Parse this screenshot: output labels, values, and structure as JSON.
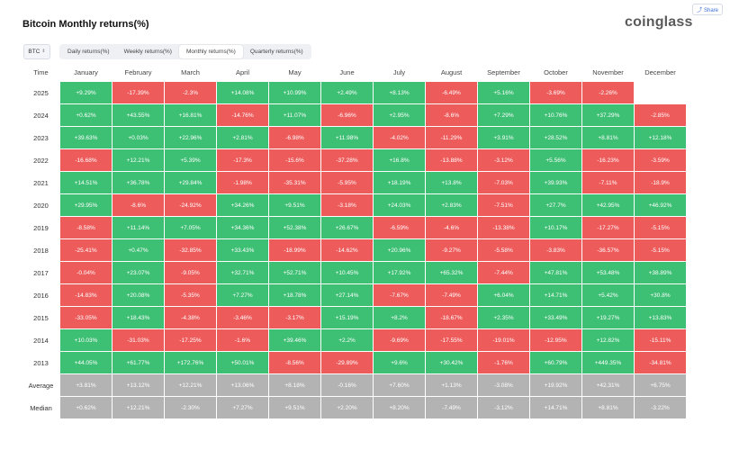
{
  "header": {
    "title": "Bitcoin Monthly returns(%)",
    "brand": "coinglass",
    "share_label": "Share"
  },
  "controls": {
    "coin": "BTC",
    "tabs": [
      {
        "label": "Daily returns(%)",
        "active": false
      },
      {
        "label": "Weekly returns(%)",
        "active": false
      },
      {
        "label": "Monthly returns(%)",
        "active": true
      },
      {
        "label": "Quarterly returns(%)",
        "active": false
      }
    ]
  },
  "table": {
    "columns": [
      "Time",
      "January",
      "February",
      "March",
      "April",
      "May",
      "June",
      "July",
      "August",
      "September",
      "October",
      "November",
      "December"
    ],
    "rows": [
      {
        "label": "2025",
        "values": [
          "+9.29%",
          "-17.39%",
          "-2.3%",
          "+14.08%",
          "+10.99%",
          "+2.49%",
          "+8.13%",
          "-6.49%",
          "+5.16%",
          "-3.69%",
          "-2.26%",
          ""
        ]
      },
      {
        "label": "2024",
        "values": [
          "+0.62%",
          "+43.55%",
          "+16.81%",
          "-14.76%",
          "+11.07%",
          "-6.96%",
          "+2.95%",
          "-8.6%",
          "+7.29%",
          "+10.76%",
          "+37.29%",
          "-2.85%"
        ]
      },
      {
        "label": "2023",
        "values": [
          "+39.63%",
          "+0.03%",
          "+22.96%",
          "+2.81%",
          "-6.98%",
          "+11.98%",
          "-4.02%",
          "-11.29%",
          "+3.91%",
          "+28.52%",
          "+8.81%",
          "+12.18%"
        ]
      },
      {
        "label": "2022",
        "values": [
          "-16.68%",
          "+12.21%",
          "+5.39%",
          "-17.3%",
          "-15.6%",
          "-37.28%",
          "+16.8%",
          "-13.88%",
          "-3.12%",
          "+5.56%",
          "-16.23%",
          "-3.59%"
        ]
      },
      {
        "label": "2021",
        "values": [
          "+14.51%",
          "+36.78%",
          "+29.84%",
          "-1.98%",
          "-35.31%",
          "-5.95%",
          "+18.19%",
          "+13.8%",
          "-7.03%",
          "+39.93%",
          "-7.11%",
          "-18.9%"
        ]
      },
      {
        "label": "2020",
        "values": [
          "+29.95%",
          "-8.6%",
          "-24.92%",
          "+34.26%",
          "+9.51%",
          "-3.18%",
          "+24.03%",
          "+2.83%",
          "-7.51%",
          "+27.7%",
          "+42.95%",
          "+46.92%"
        ]
      },
      {
        "label": "2019",
        "values": [
          "-8.58%",
          "+11.14%",
          "+7.05%",
          "+34.36%",
          "+52.38%",
          "+26.67%",
          "-6.59%",
          "-4.6%",
          "-13.38%",
          "+10.17%",
          "-17.27%",
          "-5.15%"
        ]
      },
      {
        "label": "2018",
        "values": [
          "-25.41%",
          "+0.47%",
          "-32.85%",
          "+33.43%",
          "-18.99%",
          "-14.62%",
          "+20.96%",
          "-9.27%",
          "-5.58%",
          "-3.83%",
          "-36.57%",
          "-5.15%"
        ]
      },
      {
        "label": "2017",
        "values": [
          "-0.04%",
          "+23.07%",
          "-9.05%",
          "+32.71%",
          "+52.71%",
          "+10.45%",
          "+17.92%",
          "+65.32%",
          "-7.44%",
          "+47.81%",
          "+53.48%",
          "+38.89%"
        ]
      },
      {
        "label": "2016",
        "values": [
          "-14.83%",
          "+20.08%",
          "-5.35%",
          "+7.27%",
          "+18.78%",
          "+27.14%",
          "-7.67%",
          "-7.49%",
          "+6.04%",
          "+14.71%",
          "+5.42%",
          "+30.8%"
        ]
      },
      {
        "label": "2015",
        "values": [
          "-33.05%",
          "+18.43%",
          "-4.38%",
          "-3.46%",
          "-3.17%",
          "+15.19%",
          "+8.2%",
          "-18.67%",
          "+2.35%",
          "+33.49%",
          "+19.27%",
          "+13.83%"
        ]
      },
      {
        "label": "2014",
        "values": [
          "+10.03%",
          "-31.03%",
          "-17.25%",
          "-1.6%",
          "+39.46%",
          "+2.2%",
          "-9.69%",
          "-17.55%",
          "-19.01%",
          "-12.95%",
          "+12.82%",
          "-15.11%"
        ]
      },
      {
        "label": "2013",
        "values": [
          "+44.05%",
          "+61.77%",
          "+172.76%",
          "+50.01%",
          "-8.56%",
          "-29.89%",
          "+9.6%",
          "+30.42%",
          "-1.76%",
          "+60.79%",
          "+449.35%",
          "-34.81%"
        ]
      }
    ],
    "summary": [
      {
        "label": "Average",
        "values": [
          "+3.81%",
          "+13.12%",
          "+12.21%",
          "+13.06%",
          "+8.18%",
          "-0.16%",
          "+7.60%",
          "+1.13%",
          "-3.08%",
          "+19.92%",
          "+42.31%",
          "+6.75%"
        ]
      },
      {
        "label": "Median",
        "values": [
          "+0.62%",
          "+12.21%",
          "-2.30%",
          "+7.27%",
          "+9.51%",
          "+2.20%",
          "+8.20%",
          "-7.49%",
          "-3.12%",
          "+14.71%",
          "+8.81%",
          "-3.22%"
        ]
      }
    ]
  },
  "colors": {
    "positive": "#3dbf74",
    "negative": "#ee5b5b",
    "summary": "#b3b3b3"
  }
}
